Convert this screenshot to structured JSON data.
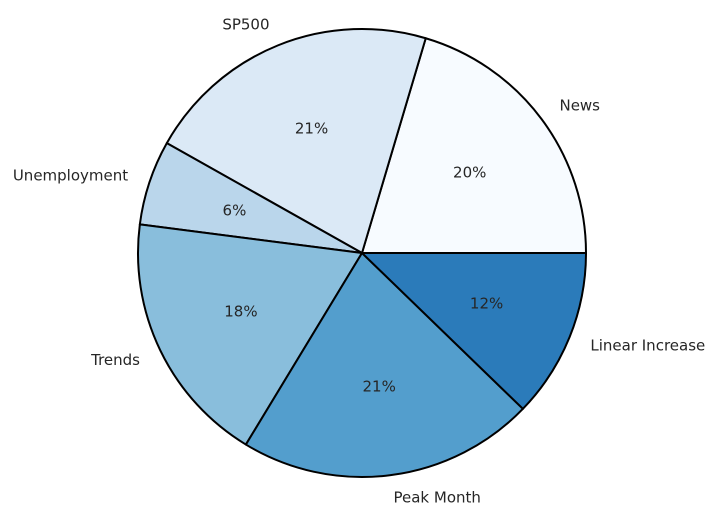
{
  "chart_data": {
    "type": "pie",
    "start_angle": "0° (3 o'clock), counter-clockwise",
    "slices": [
      {
        "label": "News",
        "value": 20,
        "pct_label": "20%",
        "color": "#f7fbff"
      },
      {
        "label": "SP500",
        "value": 21,
        "pct_label": "21%",
        "color": "#dbe9f6"
      },
      {
        "label": "Unemployment",
        "value": 6,
        "pct_label": "6%",
        "color": "#bad6eb"
      },
      {
        "label": "Trends",
        "value": 18,
        "pct_label": "18%",
        "color": "#89bedc"
      },
      {
        "label": "Peak Month",
        "value": 21,
        "pct_label": "21%",
        "color": "#539ecd"
      },
      {
        "label": "Linear Increase",
        "value": 12,
        "pct_label": "12%",
        "color": "#2b7bba"
      }
    ],
    "edge_color": "#000000"
  }
}
